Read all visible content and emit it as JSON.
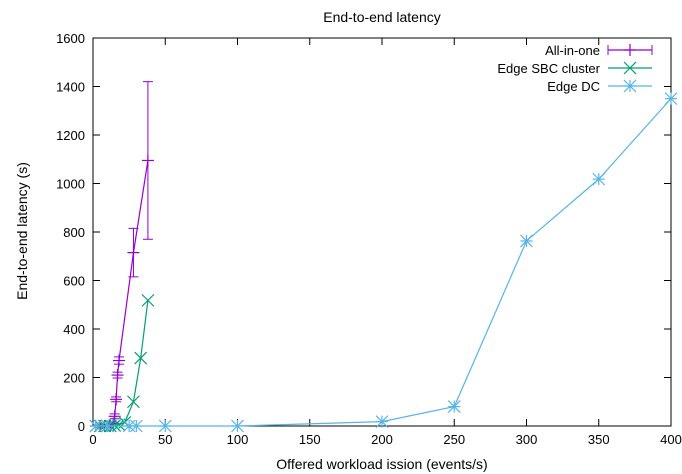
{
  "chart_data": {
    "type": "line",
    "title": "End-to-end latency",
    "xlabel": "Offered workload ission (events/s)",
    "ylabel": "End-to-end latency (s)",
    "xlim": [
      0,
      400
    ],
    "ylim": [
      0,
      1600
    ],
    "xticks": [
      0,
      50,
      100,
      150,
      200,
      250,
      300,
      350,
      400
    ],
    "yticks": [
      0,
      200,
      400,
      600,
      800,
      1000,
      1200,
      1400,
      1600
    ],
    "grid": false,
    "legend_position": "top-right",
    "series": [
      {
        "name": "All-in-one",
        "color": "#9400d3",
        "marker": "plus",
        "errorbars": true,
        "points": [
          {
            "x": 2,
            "y": 0,
            "err": 0
          },
          {
            "x": 5,
            "y": 0,
            "err": 0
          },
          {
            "x": 8,
            "y": 0,
            "err": 0
          },
          {
            "x": 10,
            "y": 0,
            "err": 0
          },
          {
            "x": 12,
            "y": 2,
            "err": 2
          },
          {
            "x": 14,
            "y": 10,
            "err": 6
          },
          {
            "x": 15,
            "y": 40,
            "err": 10
          },
          {
            "x": 16,
            "y": 110,
            "err": 10
          },
          {
            "x": 17,
            "y": 210,
            "err": 12
          },
          {
            "x": 18,
            "y": 270,
            "err": 15
          },
          {
            "x": 28,
            "y": 715,
            "err": 100
          },
          {
            "x": 38,
            "y": 1095,
            "err": 325
          }
        ]
      },
      {
        "name": "Edge SBC cluster",
        "color": "#009e73",
        "marker": "cross",
        "errorbars": false,
        "points": [
          {
            "x": 2,
            "y": 0
          },
          {
            "x": 5,
            "y": 0
          },
          {
            "x": 8,
            "y": 0
          },
          {
            "x": 10,
            "y": 0
          },
          {
            "x": 12,
            "y": 0
          },
          {
            "x": 15,
            "y": 2
          },
          {
            "x": 18,
            "y": 5
          },
          {
            "x": 22,
            "y": 15
          },
          {
            "x": 28,
            "y": 100
          },
          {
            "x": 33,
            "y": 280
          },
          {
            "x": 38,
            "y": 518
          }
        ]
      },
      {
        "name": "Edge DC",
        "color": "#56b4e9",
        "marker": "star",
        "errorbars": false,
        "points": [
          {
            "x": 2,
            "y": 0
          },
          {
            "x": 10,
            "y": 0
          },
          {
            "x": 25,
            "y": 0
          },
          {
            "x": 30,
            "y": 0
          },
          {
            "x": 50,
            "y": 0
          },
          {
            "x": 100,
            "y": 0
          },
          {
            "x": 200,
            "y": 18
          },
          {
            "x": 250,
            "y": 80
          },
          {
            "x": 300,
            "y": 763
          },
          {
            "x": 350,
            "y": 1018
          },
          {
            "x": 400,
            "y": 1350
          }
        ]
      }
    ]
  }
}
